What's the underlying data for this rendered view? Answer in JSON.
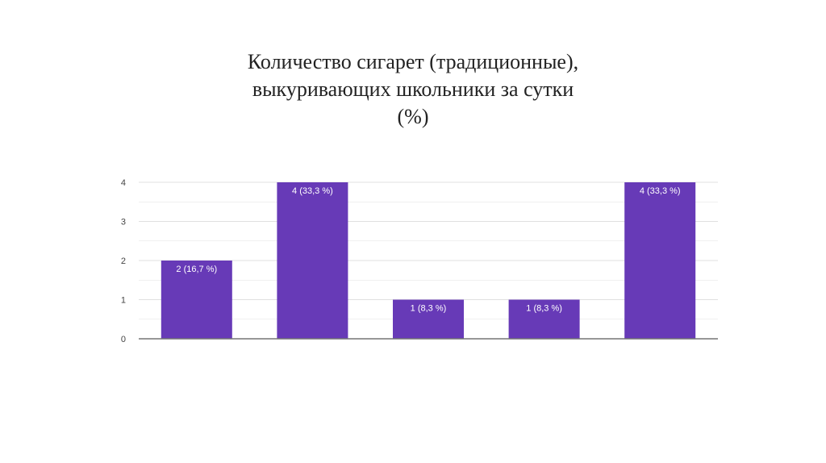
{
  "title_lines": [
    "Количество сигарет (традиционные),",
    "выкуривающих школьники за сутки",
    "(%)"
  ],
  "colors": {
    "bar": "#673ab7",
    "grid": "#e0e0e0",
    "axis": "#757575",
    "tick_text": "#444444",
    "label_text": "#ffffff"
  },
  "chart_data": {
    "type": "bar",
    "title": "Количество сигарет (традиционные), выкуривающих школьники за сутки (%)",
    "categories": [
      "",
      "",
      "",
      "",
      ""
    ],
    "values": [
      2,
      4,
      1,
      1,
      4
    ],
    "data_labels": [
      "2 (16,7 %)",
      "4 (33,3 %)",
      "1 (8,3 %)",
      "1 (8,3 %)",
      "4 (33,3 %)"
    ],
    "y_ticks": [
      "0",
      "1",
      "2",
      "3",
      "4"
    ],
    "ylim": [
      0,
      4
    ],
    "grid": true,
    "xlabel": "",
    "ylabel": ""
  }
}
